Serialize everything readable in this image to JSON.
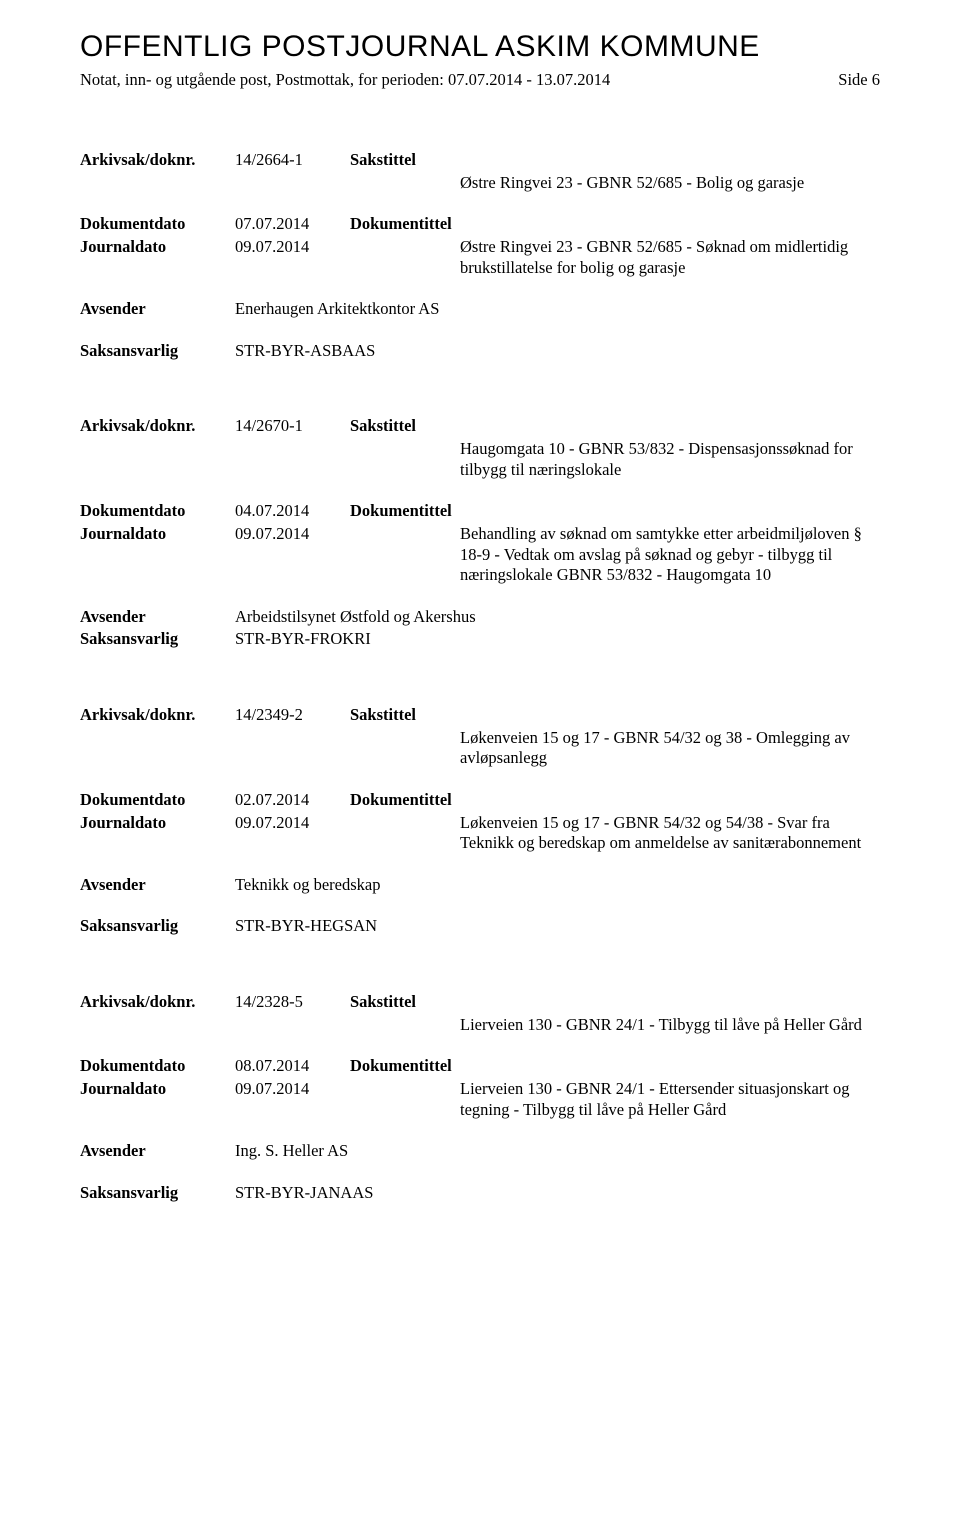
{
  "header": {
    "main_title": "OFFENTLIG POSTJOURNAL ASKIM KOMMUNE",
    "subtitle": "Notat, inn- og utgående post, Postmottak, for perioden: 07.07.2014 - 13.07.2014",
    "page_side": "Side 6"
  },
  "labels": {
    "arkivsak": "Arkivsak/doknr.",
    "dokumentdato": "Dokumentdato",
    "journaldato": "Journaldato",
    "avsender": "Avsender",
    "saksansvarlig": "Saksansvarlig",
    "sakstittel": "Sakstittel",
    "dokumentittel": "Dokumentittel"
  },
  "entries": [
    {
      "doknr": "14/2664-1",
      "sakstittel": "Østre Ringvei 23 - GBNR 52/685 - Bolig og garasje",
      "dokumentdato": "07.07.2014",
      "journaldato": "09.07.2014",
      "dokumentittel": "Østre Ringvei 23 - GBNR 52/685 - Søknad om midlertidig brukstillatelse for bolig og garasje",
      "avsender": "Enerhaugen Arkitektkontor AS",
      "saksansvarlig": "STR-BYR-ASBAAS"
    },
    {
      "doknr": "14/2670-1",
      "sakstittel": "Haugomgata 10 - GBNR 53/832 - Dispensasjonssøknad for tilbygg til næringslokale",
      "dokumentdato": "04.07.2014",
      "journaldato": "09.07.2014",
      "dokumentittel": "Behandling av søknad om samtykke etter arbeidmiljøloven § 18-9 - Vedtak om avslag på søknad og gebyr - tilbygg til næringslokale GBNR 53/832 - Haugomgata 10",
      "avsender": "Arbeidstilsynet Østfold og Akershus",
      "saksansvarlig": "STR-BYR-FROKRI"
    },
    {
      "doknr": "14/2349-2",
      "sakstittel": "Løkenveien 15 og 17 - GBNR 54/32 og 38 - Omlegging av avløpsanlegg",
      "dokumentdato": "02.07.2014",
      "journaldato": "09.07.2014",
      "dokumentittel": "Løkenveien 15 og 17 - GBNR 54/32 og 54/38 - Svar fra Teknikk og beredskap om anmeldelse av sanitærabonnement",
      "avsender": "Teknikk og beredskap",
      "saksansvarlig": "STR-BYR-HEGSAN"
    },
    {
      "doknr": "14/2328-5",
      "sakstittel": "Lierveien 130 - GBNR 24/1 - Tilbygg til låve på Heller Gård",
      "dokumentdato": "08.07.2014",
      "journaldato": "09.07.2014",
      "dokumentittel": "Lierveien 130 - GBNR 24/1 - Ettersender situasjonskart og tegning - Tilbygg til låve på Heller Gård",
      "avsender": "Ing. S. Heller AS",
      "saksansvarlig": "STR-BYR-JANAAS"
    }
  ]
}
